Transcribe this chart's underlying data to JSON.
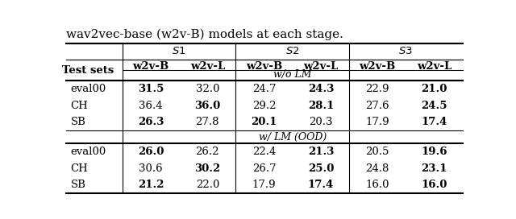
{
  "col_groups": [
    "S1",
    "S2",
    "S3"
  ],
  "col_headers": [
    "w2v-B",
    "w2v-L",
    "w2v-B",
    "w2v-L",
    "w2v-B",
    "w2v-L"
  ],
  "row_label_header": "Test sets",
  "section1_label": "w/o LM",
  "section2_label": "w/ LM (OOD)",
  "rows_section1": [
    {
      "label": "eval00",
      "values": [
        "31.5",
        "32.0",
        "24.7",
        "24.3",
        "22.9",
        "21.0"
      ],
      "bold": [
        true,
        false,
        false,
        true,
        false,
        true
      ]
    },
    {
      "label": "CH",
      "values": [
        "36.4",
        "36.0",
        "29.2",
        "28.1",
        "27.6",
        "24.5"
      ],
      "bold": [
        false,
        true,
        false,
        true,
        false,
        true
      ]
    },
    {
      "label": "SB",
      "values": [
        "26.3",
        "27.8",
        "20.1",
        "20.3",
        "17.9",
        "17.4"
      ],
      "bold": [
        true,
        false,
        true,
        false,
        false,
        true
      ]
    }
  ],
  "rows_section2": [
    {
      "label": "eval00",
      "values": [
        "26.0",
        "26.2",
        "22.4",
        "21.3",
        "20.5",
        "19.6"
      ],
      "bold": [
        true,
        false,
        false,
        true,
        false,
        true
      ]
    },
    {
      "label": "CH",
      "values": [
        "30.6",
        "30.2",
        "26.7",
        "25.0",
        "24.8",
        "23.1"
      ],
      "bold": [
        false,
        true,
        false,
        true,
        false,
        true
      ]
    },
    {
      "label": "SB",
      "values": [
        "21.2",
        "22.0",
        "17.9",
        "17.4",
        "16.0",
        "16.0"
      ],
      "bold": [
        true,
        false,
        false,
        true,
        false,
        true
      ]
    }
  ],
  "caption": "wav2vec-base (w2v-B) models at each stage.",
  "bg_color": "#ffffff",
  "text_color": "#000000",
  "figsize": [
    6.4,
    2.72
  ],
  "dpi": 100,
  "caption_fontsize": 11,
  "header_fontsize": 9.5,
  "data_fontsize": 9.5,
  "section_fontsize": 9.0
}
